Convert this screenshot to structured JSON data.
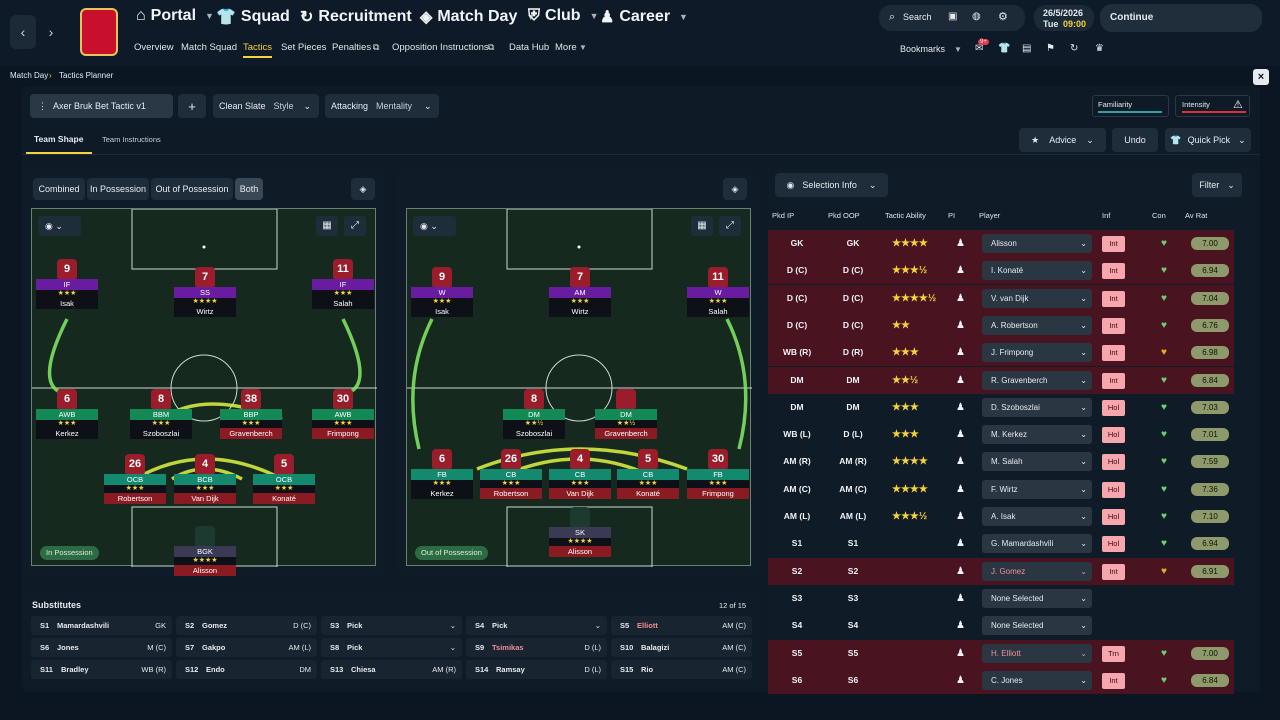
{
  "nav": {
    "menus": [
      "Portal",
      "Squad",
      "Recruitment",
      "Match Day",
      "Club",
      "Career"
    ],
    "sub": [
      "Overview",
      "Match Squad",
      "Tactics",
      "Set Pieces",
      "Penalties",
      "Opposition Instructions",
      "Data Hub",
      "More"
    ],
    "search": "Search",
    "date": "26/5/2026",
    "day": "Tue",
    "time": "09:00",
    "continue": "Continue",
    "bookmarks": "Bookmarks",
    "badge": "9+"
  },
  "breadcrumb": {
    "a": "Match Day",
    "b": "Tactics Planner"
  },
  "tactic": {
    "name": "Axer Bruk Bet Tactic v1",
    "plus": "+",
    "style_val": "Clean Slate",
    "style": "Style",
    "ment_val": "Attacking",
    "ment": "Mentality",
    "familiarity": "Familiarity",
    "intensity": "Intensity"
  },
  "tabs": {
    "shape": "Team Shape",
    "instr": "Team Instructions",
    "advice": "Advice",
    "undo": "Undo",
    "quick": "Quick Pick"
  },
  "phase": {
    "combined": "Combined",
    "inpos": "In Possession",
    "outpos": "Out of Possession",
    "both": "Both",
    "in_label": "In Possession",
    "out_label": "Out of Possession"
  },
  "pitch_in": [
    {
      "n": "9",
      "role": "IF",
      "s": "★★★",
      "name": "Isak",
      "c": "#6a1ca0"
    },
    {
      "n": "7",
      "role": "SS",
      "s": "★★★★",
      "name": "Wirtz",
      "c": "#6a1ca0"
    },
    {
      "n": "11",
      "role": "IF",
      "s": "★★★",
      "name": "Salah",
      "c": "#6a1ca0"
    },
    {
      "n": "6",
      "role": "AWB",
      "s": "★★★",
      "name": "Kerkez",
      "c": "#138a55"
    },
    {
      "n": "8",
      "role": "BBM",
      "s": "★★★",
      "name": "Szoboszlai",
      "c": "#138a55"
    },
    {
      "n": "38",
      "role": "BBP",
      "s": "★★★",
      "name": "Gravenberch",
      "c": "#138a55"
    },
    {
      "n": "30",
      "role": "AWB",
      "s": "★★★",
      "name": "Frimpong",
      "c": "#138a55"
    },
    {
      "n": "26",
      "role": "OCB",
      "s": "★★★",
      "name": "Robertson",
      "c": "#138a6e"
    },
    {
      "n": "4",
      "role": "BCB",
      "s": "★★★",
      "name": "Van Dijk",
      "c": "#138a6e"
    },
    {
      "n": "5",
      "role": "OCB",
      "s": "★★★",
      "name": "Konaté",
      "c": "#138a6e"
    },
    {
      "n": "",
      "role": "BGK",
      "s": "★★★★",
      "name": "Alisson",
      "c": "#3a3a55"
    }
  ],
  "pitch_out": [
    {
      "n": "9",
      "role": "W",
      "s": "★★★",
      "name": "Isak",
      "c": "#6a1ca0"
    },
    {
      "n": "7",
      "role": "AM",
      "s": "★★★",
      "name": "Wirtz",
      "c": "#6a1ca0"
    },
    {
      "n": "11",
      "role": "W",
      "s": "★★★",
      "name": "Salah",
      "c": "#6a1ca0"
    },
    {
      "n": "8",
      "role": "DM",
      "s": "★★½",
      "name": "Szoboszlai",
      "c": "#138a55"
    },
    {
      "n": "",
      "role": "DM",
      "s": "★★½",
      "name": "Gravenberch",
      "c": "#138a55"
    },
    {
      "n": "6",
      "role": "FB",
      "s": "★★★",
      "name": "Kerkez",
      "c": "#138a6e"
    },
    {
      "n": "26",
      "role": "CB",
      "s": "★★★",
      "name": "Robertson",
      "c": "#138a6e"
    },
    {
      "n": "4",
      "role": "CB",
      "s": "★★★",
      "name": "Van Dijk",
      "c": "#138a6e"
    },
    {
      "n": "5",
      "role": "CB",
      "s": "★★★",
      "name": "Konaté",
      "c": "#138a6e"
    },
    {
      "n": "30",
      "role": "FB",
      "s": "★★★",
      "name": "Frimpong",
      "c": "#138a6e"
    },
    {
      "n": "",
      "role": "SK",
      "s": "★★★★",
      "name": "Alisson",
      "c": "#3a3a55"
    }
  ],
  "subs_title": "Substitutes",
  "subs_count": "12 of 15",
  "subs": [
    {
      "id": "S1",
      "name": "Mamardashvili",
      "pos": "GK"
    },
    {
      "id": "S2",
      "name": "Gomez",
      "pos": "D (C)"
    },
    {
      "id": "S3",
      "name": "Pick",
      "pos": ""
    },
    {
      "id": "S4",
      "name": "Pick",
      "pos": ""
    },
    {
      "id": "S5",
      "name": "Elliott",
      "pos": "AM (C)"
    },
    {
      "id": "S6",
      "name": "Jones",
      "pos": "M (C)"
    },
    {
      "id": "S7",
      "name": "Gakpo",
      "pos": "AM (L)"
    },
    {
      "id": "S8",
      "name": "Pick",
      "pos": ""
    },
    {
      "id": "S9",
      "name": "Tsimikas",
      "pos": "D (L)"
    },
    {
      "id": "S10",
      "name": "Balagizi",
      "pos": "AM (C)"
    },
    {
      "id": "S11",
      "name": "Bradley",
      "pos": "WB (R)"
    },
    {
      "id": "S12",
      "name": "Endo",
      "pos": "DM"
    },
    {
      "id": "S13",
      "name": "Chiesa",
      "pos": "AM (R)"
    },
    {
      "id": "S14",
      "name": "Ramsay",
      "pos": "D (L)"
    },
    {
      "id": "S15",
      "name": "Rio",
      "pos": "AM (C)"
    }
  ],
  "sel": {
    "btn": "Selection Info",
    "filter": "Filter",
    "h": [
      "Pkd IP",
      "Pkd OOP",
      "Tactic Ability",
      "PI",
      "Player",
      "Inf",
      "Con",
      "Av Rat"
    ]
  },
  "rows": [
    {
      "ip": "GK",
      "oop": "GK",
      "s": "★★★★",
      "p": "Alisson",
      "inf": "Int",
      "r": "7.00",
      "red": true
    },
    {
      "ip": "D (C)",
      "oop": "D (C)",
      "s": "★★★½",
      "p": "I. Konaté",
      "inf": "Int",
      "r": "6.94",
      "red": true
    },
    {
      "ip": "D (C)",
      "oop": "D (C)",
      "s": "★★★★½",
      "p": "V. van Dijk",
      "inf": "Int",
      "r": "7.04",
      "red": true
    },
    {
      "ip": "D (C)",
      "oop": "D (C)",
      "s": "★★",
      "p": "A. Robertson",
      "inf": "Int",
      "r": "6.76",
      "red": true
    },
    {
      "ip": "WB (R)",
      "oop": "D (R)",
      "s": "★★★",
      "p": "J. Frimpong",
      "inf": "Int",
      "r": "6.98",
      "red": true
    },
    {
      "ip": "DM",
      "oop": "DM",
      "s": "★★½",
      "p": "R. Gravenberch",
      "inf": "Int",
      "r": "6.84",
      "red": true
    },
    {
      "ip": "DM",
      "oop": "DM",
      "s": "★★★",
      "p": "D. Szoboszlai",
      "inf": "Hol",
      "r": "7.03",
      "red": false
    },
    {
      "ip": "WB (L)",
      "oop": "D (L)",
      "s": "★★★",
      "p": "M. Kerkez",
      "inf": "Hol",
      "r": "7.01",
      "red": false
    },
    {
      "ip": "AM (R)",
      "oop": "AM (R)",
      "s": "★★★★",
      "p": "M. Salah",
      "inf": "Hol",
      "r": "7.59",
      "red": false
    },
    {
      "ip": "AM (C)",
      "oop": "AM (C)",
      "s": "★★★★",
      "p": "F. Wirtz",
      "inf": "Hol",
      "r": "7.36",
      "red": false
    },
    {
      "ip": "AM (L)",
      "oop": "AM (L)",
      "s": "★★★½",
      "p": "A. Isak",
      "inf": "Hol",
      "r": "7.10",
      "red": false
    },
    {
      "ip": "S1",
      "oop": "S1",
      "s": "",
      "p": "G. Mamardashvili",
      "inf": "Hol",
      "r": "6.94",
      "red": false
    },
    {
      "ip": "S2",
      "oop": "S2",
      "s": "",
      "p": "J. Gomez",
      "inf": "Int",
      "r": "6.91",
      "red": true
    },
    {
      "ip": "S3",
      "oop": "S3",
      "s": "",
      "p": "None Selected",
      "inf": "",
      "r": "",
      "red": false
    },
    {
      "ip": "S4",
      "oop": "S4",
      "s": "",
      "p": "None Selected",
      "inf": "",
      "r": "",
      "red": false
    },
    {
      "ip": "S5",
      "oop": "S5",
      "s": "",
      "p": "H. Elliott",
      "inf": "Trn",
      "r": "7.00",
      "red": true
    },
    {
      "ip": "S6",
      "oop": "S6",
      "s": "",
      "p": "C. Jones",
      "inf": "Int",
      "r": "6.84",
      "red": true
    }
  ]
}
